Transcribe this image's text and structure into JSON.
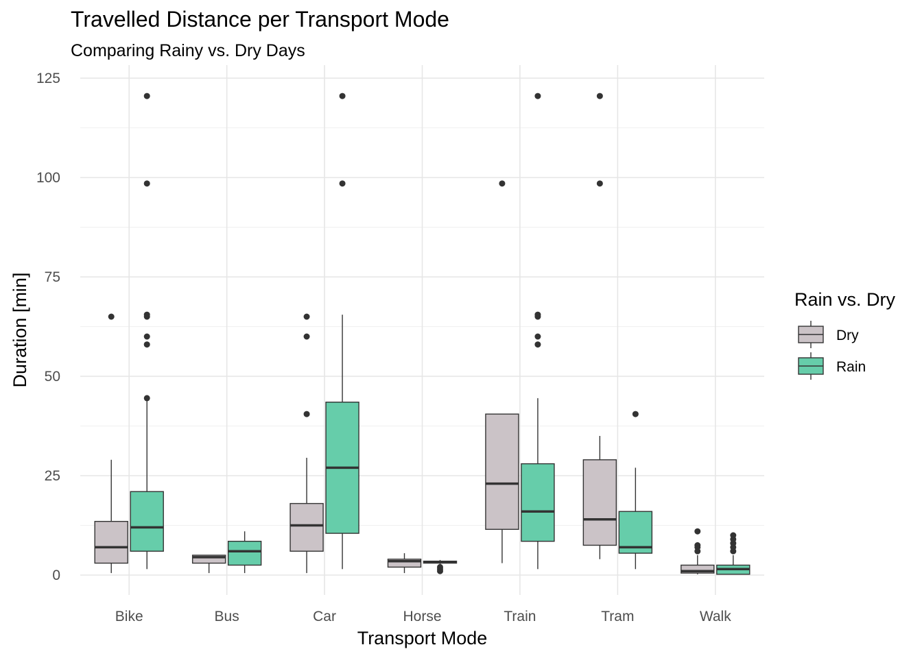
{
  "chart_data": {
    "type": "boxplot",
    "title": "Travelled Distance per Transport Mode",
    "subtitle": "Comparing Rainy vs. Dry Days",
    "xlabel": "Transport Mode",
    "ylabel": "Duration [min]",
    "ylim": [
      -5,
      127
    ],
    "yticks": [
      0,
      25,
      50,
      75,
      100,
      125
    ],
    "grid": true,
    "legend": {
      "title": "Rain vs. Dry",
      "position": "right"
    },
    "categories": [
      "Bike",
      "Bus",
      "Car",
      "Horse",
      "Train",
      "Tram",
      "Walk"
    ],
    "series": [
      {
        "name": "Dry",
        "color": "#CBC3C7",
        "boxes": [
          {
            "min": 0.5,
            "q1": 3,
            "median": 7,
            "q3": 13.5,
            "max": 29,
            "outliers": [
              65
            ]
          },
          {
            "min": 0.5,
            "q1": 3,
            "median": 4.5,
            "q3": 5,
            "max": 5,
            "outliers": []
          },
          {
            "min": 0.5,
            "q1": 6,
            "median": 12.5,
            "q3": 18,
            "max": 29.5,
            "outliers": [
              40.5,
              60,
              65
            ]
          },
          {
            "min": 0.5,
            "q1": 2,
            "median": 3.5,
            "q3": 4,
            "max": 5.5,
            "outliers": []
          },
          {
            "min": 3,
            "q1": 11.5,
            "median": 23,
            "q3": 40.5,
            "max": 40.5,
            "outliers": [
              98.5
            ]
          },
          {
            "min": 4,
            "q1": 7.5,
            "median": 14,
            "q3": 29,
            "max": 35,
            "outliers": [
              98.5,
              120.5
            ]
          },
          {
            "min": 0.2,
            "q1": 0.5,
            "median": 1,
            "q3": 2.5,
            "max": 5,
            "outliers": [
              6,
              7,
              7.5,
              11
            ]
          }
        ]
      },
      {
        "name": "Rain",
        "color": "#66CDAA",
        "boxes": [
          {
            "min": 1.5,
            "q1": 6,
            "median": 12,
            "q3": 21,
            "max": 44,
            "outliers": [
              44.5,
              58,
              60,
              65,
              65.5,
              98.5,
              120.5
            ]
          },
          {
            "min": 0.5,
            "q1": 2.5,
            "median": 6,
            "q3": 8.5,
            "max": 11,
            "outliers": []
          },
          {
            "min": 1.5,
            "q1": 10.5,
            "median": 27,
            "q3": 43.5,
            "max": 65.5,
            "outliers": [
              98.5,
              120.5
            ]
          },
          {
            "min": 2.5,
            "q1": 3,
            "median": 3.3,
            "q3": 3.5,
            "max": 3.8,
            "outliers": [
              1,
              1.5,
              2
            ]
          },
          {
            "min": 1.5,
            "q1": 8.5,
            "median": 16,
            "q3": 28,
            "max": 44.5,
            "outliers": [
              58,
              60,
              65,
              65.5,
              120.5
            ]
          },
          {
            "min": 1.5,
            "q1": 5.5,
            "median": 7,
            "q3": 16,
            "max": 27,
            "outliers": [
              40.5
            ]
          },
          {
            "min": 0.2,
            "q1": 0.2,
            "median": 1.5,
            "q3": 2.5,
            "max": 5,
            "outliers": [
              6,
              7,
              8,
              9,
              10
            ]
          }
        ]
      }
    ]
  }
}
